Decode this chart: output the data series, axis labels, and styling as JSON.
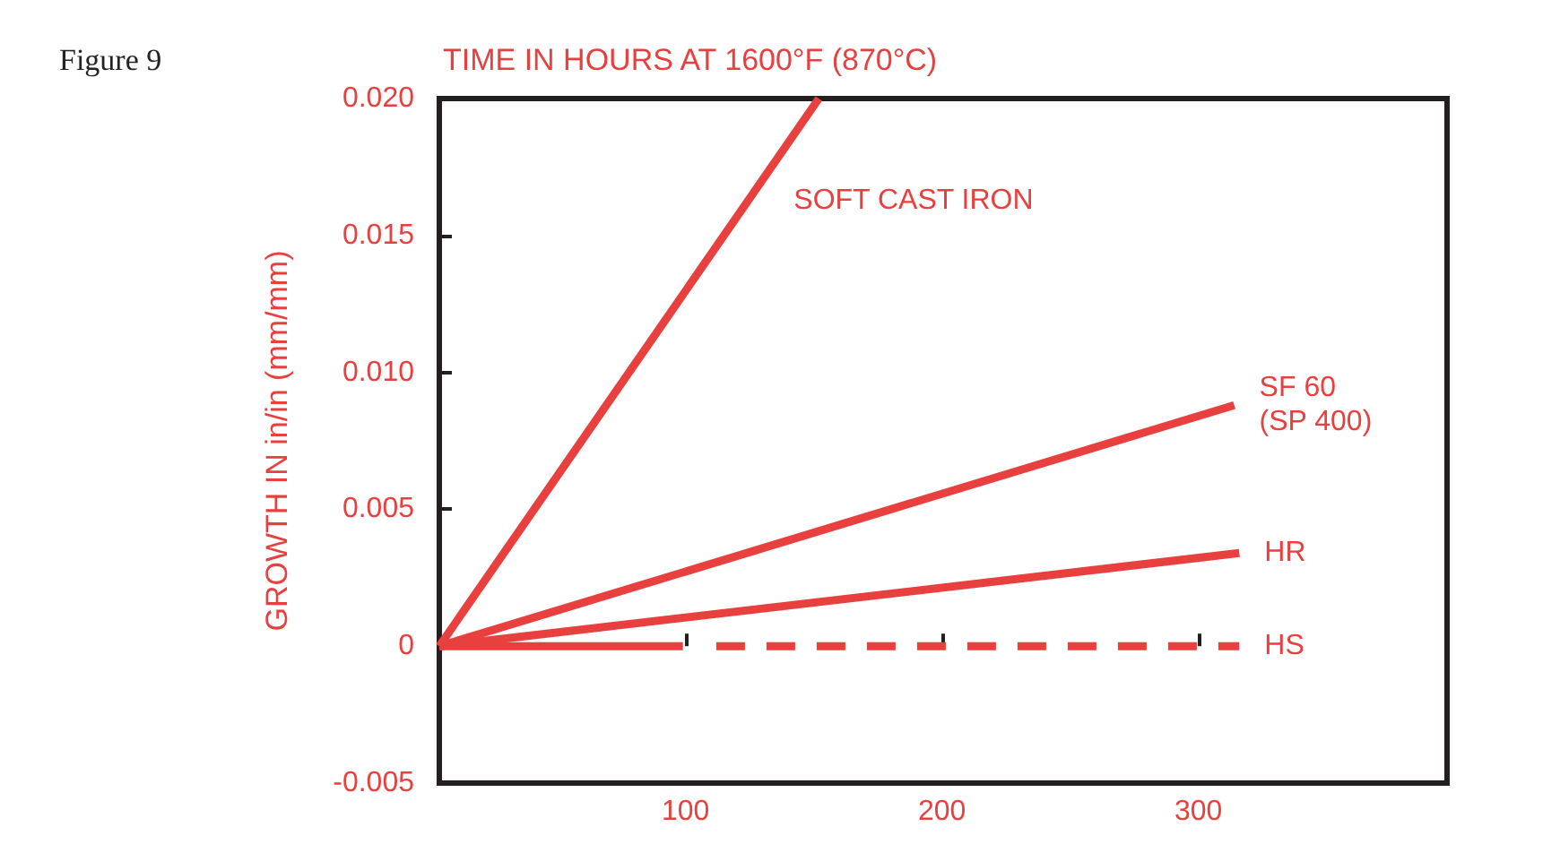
{
  "chart_data": {
    "type": "line",
    "title": "Figure 9",
    "xlabel": "TIME IN HOURS AT 1600°F (870°C)",
    "ylabel": "GROWTH IN in/in (mm/mm)",
    "xlim": [
      4,
      397
    ],
    "xticks": [
      100,
      200,
      300
    ],
    "ylim": [
      -0.005,
      0.02
    ],
    "yticks": [
      -0.005,
      0,
      0.005,
      {
        "value": 0.01,
        "label": "0.010"
      },
      0.015,
      {
        "value": 0.02,
        "label": "0.020"
      }
    ],
    "grid": false,
    "legend": false,
    "marker": "none",
    "line_style": "solid",
    "series": [
      {
        "name": "SOFT CAST IRON",
        "color": "#e8403f",
        "x": [
          4,
          152
        ],
        "values": [
          0,
          0.02
        ]
      },
      {
        "name": "SF 60\n(SP 400)",
        "color": "#e8403f",
        "x": [
          4,
          314
        ],
        "values": [
          0,
          0.0088
        ]
      },
      {
        "name": "HR",
        "color": "#e8403f",
        "x": [
          4,
          316
        ],
        "values": [
          0,
          0.0034
        ]
      },
      {
        "color": "#e8403f",
        "x": [
          4,
          99
        ],
        "values": [
          0,
          0
        ]
      },
      {
        "name": "HS",
        "color": "#e8403f",
        "line_style": "dashed",
        "x": [
          112,
          316
        ],
        "values": [
          0,
          0
        ]
      }
    ]
  }
}
